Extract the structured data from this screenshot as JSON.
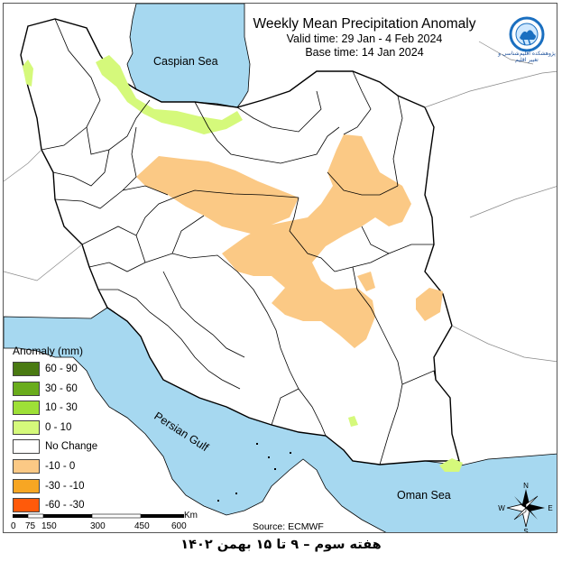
{
  "map": {
    "title": "Weekly Mean Precipitation Anomaly",
    "valid_time": "Valid time:  29 Jan - 4 Feb 2024",
    "base_time": "Base time: 14 Jan 2024",
    "source": "Source: ECMWF",
    "footer": "هفته سوم – ۹ تا ۱۵ بهمن ۱۴۰۲",
    "logo_text": "پژوهشکده اقلیم‌شناسی و تغییر اقلیم",
    "sea_labels": {
      "caspian": "Caspian Sea",
      "persian_gulf": "Persian Gulf",
      "oman": "Oman Sea"
    },
    "colors": {
      "sea": "#a6d8f0",
      "land": "#ffffff",
      "border": "#000000",
      "neg_0_10": "#fbc985",
      "pos_0_10": "#d5f97b"
    }
  },
  "legend": {
    "title": "Anomaly (mm)",
    "items": [
      {
        "label": "60 - 90",
        "color": "#4a7a12"
      },
      {
        "label": "30 - 60",
        "color": "#6aac1c"
      },
      {
        "label": "10 - 30",
        "color": "#9ee037"
      },
      {
        "label": "0 - 10",
        "color": "#d5f97b"
      },
      {
        "label": "No Change",
        "color": "#ffffff"
      },
      {
        "label": "-10 - 0",
        "color": "#fbc985"
      },
      {
        "label": "-30 - -10",
        "color": "#f7a623"
      },
      {
        "label": "-60 - -30",
        "color": "#ff5a0a"
      }
    ]
  },
  "scale": {
    "ticks": [
      "0",
      "75",
      "150",
      "300",
      "450",
      "600"
    ],
    "unit": "Km"
  },
  "compass": {
    "n": "N",
    "s": "S",
    "e": "E",
    "w": "W"
  }
}
